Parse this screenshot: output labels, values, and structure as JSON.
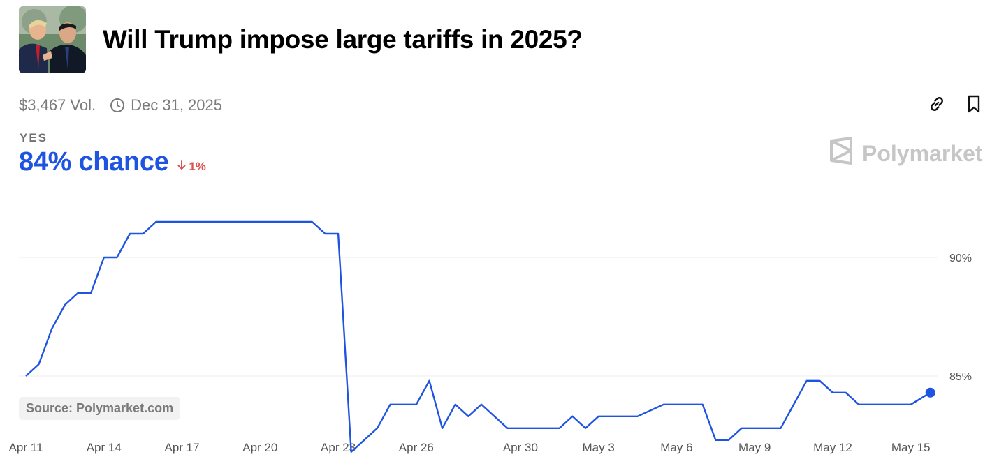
{
  "header": {
    "title": "Will Trump impose large tariffs in 2025?"
  },
  "meta": {
    "volume": "$3,467 Vol.",
    "end_date": "Dec 31, 2025"
  },
  "outcome": {
    "label": "YES",
    "chance": "84% chance",
    "delta": "1%",
    "delta_direction": "down"
  },
  "brand": "Polymarket",
  "source": "Source: Polymarket.com",
  "icons": [
    "link-icon",
    "bookmark-icon",
    "clock-icon",
    "polymarket-logo-icon",
    "down-arrow-icon"
  ],
  "colors": {
    "line": "#1f54e0",
    "down": "#d9534f",
    "muted": "#7b7b7b"
  },
  "chart_data": {
    "type": "line",
    "title": "",
    "xlabel": "",
    "ylabel": "",
    "y_ticks": [
      85,
      90
    ],
    "y_tick_labels": [
      "85%",
      "90%"
    ],
    "ylim": [
      81.5,
      93.5
    ],
    "grid": true,
    "x_start": "2025-04-11",
    "x_end": "2025-05-16",
    "x_ticks": [
      {
        "date": "2025-04-11",
        "label": "Apr 11"
      },
      {
        "date": "2025-04-14",
        "label": "Apr 14"
      },
      {
        "date": "2025-04-17",
        "label": "Apr 17"
      },
      {
        "date": "2025-04-20",
        "label": "Apr 20"
      },
      {
        "date": "2025-04-23",
        "label": "Apr 23"
      },
      {
        "date": "2025-04-26",
        "label": "Apr 26"
      },
      {
        "date": "2025-04-30",
        "label": "Apr 30"
      },
      {
        "date": "2025-05-03",
        "label": "May 3"
      },
      {
        "date": "2025-05-06",
        "label": "May 6"
      },
      {
        "date": "2025-05-09",
        "label": "May 9"
      },
      {
        "date": "2025-05-12",
        "label": "May 12"
      },
      {
        "date": "2025-05-15",
        "label": "May 15"
      }
    ],
    "series": [
      {
        "points": [
          [
            "2025-04-11 00:00",
            85.0
          ],
          [
            "2025-04-11 12:00",
            85.5
          ],
          [
            "2025-04-12 00:00",
            87.0
          ],
          [
            "2025-04-12 12:00",
            88.0
          ],
          [
            "2025-04-13 00:00",
            88.5
          ],
          [
            "2025-04-13 12:00",
            88.5
          ],
          [
            "2025-04-14 00:00",
            90.0
          ],
          [
            "2025-04-14 12:00",
            90.0
          ],
          [
            "2025-04-15 00:00",
            91.0
          ],
          [
            "2025-04-15 12:00",
            91.0
          ],
          [
            "2025-04-16 00:00",
            91.5
          ],
          [
            "2025-04-22 00:00",
            91.5
          ],
          [
            "2025-04-22 12:00",
            91.0
          ],
          [
            "2025-04-23 00:00",
            91.0
          ],
          [
            "2025-04-23 12:00",
            81.8
          ],
          [
            "2025-04-24 12:00",
            82.8
          ],
          [
            "2025-04-25 00:00",
            83.8
          ],
          [
            "2025-04-26 00:00",
            83.8
          ],
          [
            "2025-04-26 12:00",
            84.8
          ],
          [
            "2025-04-27 00:00",
            82.8
          ],
          [
            "2025-04-27 12:00",
            83.8
          ],
          [
            "2025-04-28 00:00",
            83.3
          ],
          [
            "2025-04-28 12:00",
            83.8
          ],
          [
            "2025-04-29 12:00",
            82.8
          ],
          [
            "2025-05-01 12:00",
            82.8
          ],
          [
            "2025-05-02 00:00",
            83.3
          ],
          [
            "2025-05-02 12:00",
            82.8
          ],
          [
            "2025-05-03 00:00",
            83.3
          ],
          [
            "2025-05-04 12:00",
            83.3
          ],
          [
            "2025-05-05 12:00",
            83.8
          ],
          [
            "2025-05-07 00:00",
            83.8
          ],
          [
            "2025-05-07 12:00",
            82.3
          ],
          [
            "2025-05-08 00:00",
            82.3
          ],
          [
            "2025-05-08 12:00",
            82.8
          ],
          [
            "2025-05-10 00:00",
            82.8
          ],
          [
            "2025-05-11 00:00",
            84.8
          ],
          [
            "2025-05-11 12:00",
            84.8
          ],
          [
            "2025-05-12 00:00",
            84.3
          ],
          [
            "2025-05-12 12:00",
            84.3
          ],
          [
            "2025-05-13 00:00",
            83.8
          ],
          [
            "2025-05-15 00:00",
            83.8
          ],
          [
            "2025-05-15 18:00",
            84.3
          ]
        ]
      }
    ]
  }
}
